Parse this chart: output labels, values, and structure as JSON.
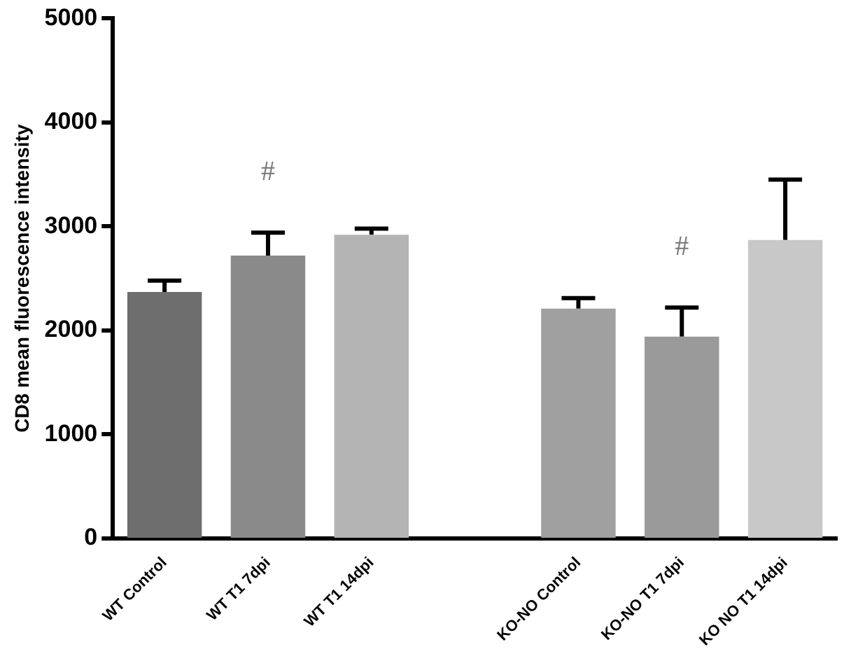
{
  "chart_data": {
    "type": "bar",
    "ylabel": "CD8 mean fluorescence intensity",
    "categories": [
      "WT Control",
      "WT T1 7dpi",
      "WT T1 14dpi",
      null,
      "KO-NO Control",
      "KO-NO T1 7dpi",
      "KO NO T1 14dpi"
    ],
    "values": [
      2370,
      2720,
      2920,
      null,
      2210,
      1940,
      2870
    ],
    "errors": [
      [
        2370,
        2480
      ],
      [
        2720,
        2940
      ],
      [
        2920,
        2980
      ],
      null,
      [
        2210,
        2310
      ],
      [
        1940,
        2220
      ],
      [
        2870,
        3450
      ]
    ],
    "colors": [
      "#6e6e6e",
      "#8a8a8a",
      "#b4b4b4",
      "#ffffff",
      "#a0a0a0",
      "#9a9a9a",
      "#c8c8c8"
    ],
    "ylim": [
      0,
      5000
    ],
    "yticks": [
      0,
      1000,
      2000,
      3000,
      4000,
      5000
    ],
    "grid": false,
    "legend": false,
    "annotations": [
      "#",
      "#"
    ]
  }
}
